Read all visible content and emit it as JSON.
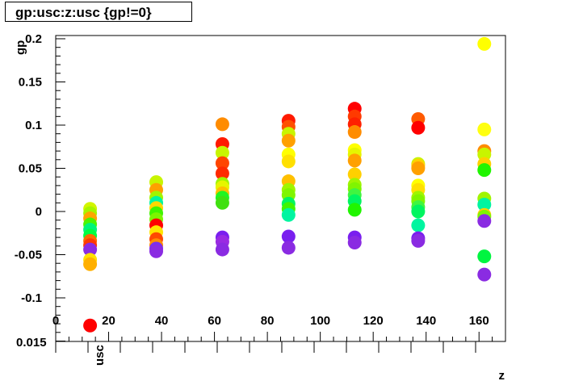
{
  "title": "gp:usc:z:usc {gp!=0}",
  "chart_data": {
    "type": "scatter",
    "title": "gp:usc:z:usc {gp!=0}",
    "xlabel": "z",
    "ylabel": "gp",
    "zlabel": "usc",
    "xlim": [
      0,
      170
    ],
    "ylim": [
      -0.15,
      0.2
    ],
    "x_ticks": [
      "0",
      "20",
      "40",
      "60",
      "80",
      "100",
      "120",
      "140",
      "160"
    ],
    "y_ticks": [
      "-0.1",
      "-0.05",
      "0",
      "0.05",
      "0.1",
      "0.15",
      "0.2"
    ],
    "z_ticks_overlapped": "0.015",
    "points": [
      {
        "x": 13,
        "y": 0.003,
        "color": "#d2f500"
      },
      {
        "x": 13,
        "y": -0.002,
        "color": "#a5f500"
      },
      {
        "x": 13,
        "y": -0.008,
        "color": "#ffa500"
      },
      {
        "x": 13,
        "y": -0.015,
        "color": "#4cf500"
      },
      {
        "x": 13,
        "y": -0.021,
        "color": "#00f57a"
      },
      {
        "x": 13,
        "y": -0.028,
        "color": "#00ff40"
      },
      {
        "x": 13,
        "y": -0.034,
        "color": "#ff6b00"
      },
      {
        "x": 13,
        "y": -0.039,
        "color": "#ff3a00"
      },
      {
        "x": 13,
        "y": -0.044,
        "color": "#8a2be2"
      },
      {
        "x": 13,
        "y": -0.056,
        "color": "#ffe000"
      },
      {
        "x": 13,
        "y": -0.061,
        "color": "#ffb000"
      },
      {
        "x": 13,
        "y": -0.132,
        "color": "#ff0000"
      },
      {
        "x": 38,
        "y": 0.034,
        "color": "#c8f500"
      },
      {
        "x": 38,
        "y": 0.025,
        "color": "#ffa000"
      },
      {
        "x": 38,
        "y": 0.016,
        "color": "#a0f500"
      },
      {
        "x": 38,
        "y": 0.01,
        "color": "#00f5a0"
      },
      {
        "x": 38,
        "y": 0.004,
        "color": "#ffd700"
      },
      {
        "x": 38,
        "y": -0.002,
        "color": "#40f500"
      },
      {
        "x": 38,
        "y": -0.009,
        "color": "#7cf500"
      },
      {
        "x": 38,
        "y": -0.016,
        "color": "#ff0000"
      },
      {
        "x": 38,
        "y": -0.024,
        "color": "#ffe500"
      },
      {
        "x": 38,
        "y": -0.032,
        "color": "#ff4a00"
      },
      {
        "x": 38,
        "y": -0.039,
        "color": "#ff8c00"
      },
      {
        "x": 38,
        "y": -0.043,
        "color": "#7b2fef"
      },
      {
        "x": 38,
        "y": -0.046,
        "color": "#8a2be2"
      },
      {
        "x": 63,
        "y": 0.101,
        "color": "#ff8c00"
      },
      {
        "x": 63,
        "y": 0.078,
        "color": "#ff1a00"
      },
      {
        "x": 63,
        "y": 0.068,
        "color": "#c8f500"
      },
      {
        "x": 63,
        "y": 0.056,
        "color": "#ff4500"
      },
      {
        "x": 63,
        "y": 0.044,
        "color": "#ff2a00"
      },
      {
        "x": 63,
        "y": 0.032,
        "color": "#a0f500"
      },
      {
        "x": 63,
        "y": 0.028,
        "color": "#e6f500"
      },
      {
        "x": 63,
        "y": 0.021,
        "color": "#ffc000"
      },
      {
        "x": 63,
        "y": 0.016,
        "color": "#20f520"
      },
      {
        "x": 63,
        "y": 0.01,
        "color": "#40e010"
      },
      {
        "x": 63,
        "y": -0.03,
        "color": "#7a1fef"
      },
      {
        "x": 63,
        "y": -0.035,
        "color": "#9a2be2"
      },
      {
        "x": 63,
        "y": -0.044,
        "color": "#8a2be2"
      },
      {
        "x": 88,
        "y": 0.105,
        "color": "#ff1a00"
      },
      {
        "x": 88,
        "y": 0.098,
        "color": "#ff5000"
      },
      {
        "x": 88,
        "y": 0.09,
        "color": "#c8f500"
      },
      {
        "x": 88,
        "y": 0.082,
        "color": "#ffa000"
      },
      {
        "x": 88,
        "y": 0.066,
        "color": "#ffff00"
      },
      {
        "x": 88,
        "y": 0.058,
        "color": "#ffe000"
      },
      {
        "x": 88,
        "y": 0.035,
        "color": "#ffc000"
      },
      {
        "x": 88,
        "y": 0.025,
        "color": "#a0f500"
      },
      {
        "x": 88,
        "y": 0.019,
        "color": "#80f500"
      },
      {
        "x": 88,
        "y": 0.009,
        "color": "#00f560"
      },
      {
        "x": 88,
        "y": 0.003,
        "color": "#40f500"
      },
      {
        "x": 88,
        "y": -0.004,
        "color": "#00f5a0"
      },
      {
        "x": 88,
        "y": -0.029,
        "color": "#7a1fef"
      },
      {
        "x": 88,
        "y": -0.042,
        "color": "#8a2be2"
      },
      {
        "x": 113,
        "y": 0.119,
        "color": "#ff0000"
      },
      {
        "x": 113,
        "y": 0.11,
        "color": "#ff3a00"
      },
      {
        "x": 113,
        "y": 0.101,
        "color": "#ff2000"
      },
      {
        "x": 113,
        "y": 0.092,
        "color": "#ff8c00"
      },
      {
        "x": 113,
        "y": 0.071,
        "color": "#ffff00"
      },
      {
        "x": 113,
        "y": 0.066,
        "color": "#e6f500"
      },
      {
        "x": 113,
        "y": 0.059,
        "color": "#ffa000"
      },
      {
        "x": 113,
        "y": 0.043,
        "color": "#ffd000"
      },
      {
        "x": 113,
        "y": 0.031,
        "color": "#a0f500"
      },
      {
        "x": 113,
        "y": 0.026,
        "color": "#80f500"
      },
      {
        "x": 113,
        "y": 0.019,
        "color": "#40f540"
      },
      {
        "x": 113,
        "y": 0.012,
        "color": "#00f560"
      },
      {
        "x": 113,
        "y": 0.002,
        "color": "#20f500"
      },
      {
        "x": 113,
        "y": -0.03,
        "color": "#7a1fef"
      },
      {
        "x": 113,
        "y": -0.036,
        "color": "#8a2be2"
      },
      {
        "x": 137,
        "y": 0.107,
        "color": "#ff5a00"
      },
      {
        "x": 137,
        "y": 0.097,
        "color": "#ff0000"
      },
      {
        "x": 137,
        "y": 0.055,
        "color": "#c8f500"
      },
      {
        "x": 137,
        "y": 0.053,
        "color": "#ffd000"
      },
      {
        "x": 137,
        "y": 0.05,
        "color": "#ffa000"
      },
      {
        "x": 137,
        "y": 0.03,
        "color": "#ffff00"
      },
      {
        "x": 137,
        "y": 0.025,
        "color": "#ffe000"
      },
      {
        "x": 137,
        "y": 0.016,
        "color": "#a0f500"
      },
      {
        "x": 137,
        "y": 0.012,
        "color": "#80f500"
      },
      {
        "x": 137,
        "y": 0.005,
        "color": "#40f540"
      },
      {
        "x": 137,
        "y": 0.0,
        "color": "#00f560"
      },
      {
        "x": 137,
        "y": -0.016,
        "color": "#00f5a0"
      },
      {
        "x": 137,
        "y": -0.031,
        "color": "#7a1fef"
      },
      {
        "x": 137,
        "y": -0.034,
        "color": "#8a2be2"
      },
      {
        "x": 162,
        "y": 0.194,
        "color": "#ffff00"
      },
      {
        "x": 162,
        "y": 0.095,
        "color": "#ffff10"
      },
      {
        "x": 162,
        "y": 0.07,
        "color": "#ff8c00"
      },
      {
        "x": 162,
        "y": 0.066,
        "color": "#c8f500"
      },
      {
        "x": 162,
        "y": 0.055,
        "color": "#ffd000"
      },
      {
        "x": 162,
        "y": 0.048,
        "color": "#20f500"
      },
      {
        "x": 162,
        "y": 0.015,
        "color": "#a0f500"
      },
      {
        "x": 162,
        "y": 0.008,
        "color": "#00f5a0"
      },
      {
        "x": 162,
        "y": -0.004,
        "color": "#ffd000"
      },
      {
        "x": 162,
        "y": -0.006,
        "color": "#80f500"
      },
      {
        "x": 162,
        "y": -0.011,
        "color": "#8a2be2"
      },
      {
        "x": 162,
        "y": -0.052,
        "color": "#00f540"
      },
      {
        "x": 162,
        "y": -0.073,
        "color": "#8a2be2"
      }
    ]
  }
}
